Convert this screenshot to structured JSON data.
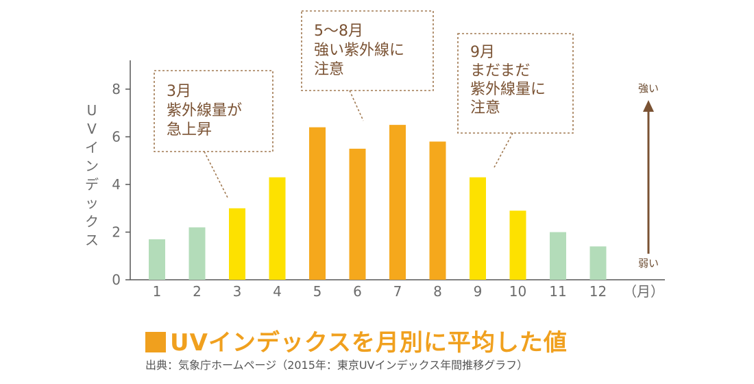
{
  "chart_data": {
    "type": "bar",
    "categories": [
      "1",
      "2",
      "3",
      "4",
      "5",
      "6",
      "7",
      "8",
      "9",
      "10",
      "11",
      "12"
    ],
    "x_unit_label": "（月）",
    "values": [
      1.7,
      2.2,
      3.0,
      4.3,
      6.4,
      5.5,
      6.5,
      5.8,
      4.3,
      2.9,
      2.0,
      1.4
    ],
    "bar_colors": [
      "#b3dcb9",
      "#b3dcb9",
      "#fde100",
      "#fde100",
      "#f5a81c",
      "#f5a81c",
      "#f5a81c",
      "#f5a81c",
      "#fde100",
      "#fde100",
      "#b3dcb9",
      "#b3dcb9"
    ],
    "ylabel": "UVインデックス",
    "yticks": [
      0,
      2,
      4,
      6,
      8
    ],
    "ylim": [
      0,
      8.9
    ],
    "grid": false,
    "title": "UVインデックスを月別に平均した値",
    "source": "出典：気象庁ホームページ（2015年：東京UVインデックス年間推移グラフ）",
    "scale": {
      "top_label": "強い",
      "bottom_label": "弱い",
      "arrow_color": "#7a5233"
    },
    "annotations": [
      {
        "target": "3",
        "lines": [
          "3月",
          "紫外線量が",
          "急上昇"
        ]
      },
      {
        "target": "6",
        "lines": [
          "5〜8月",
          "強い紫外線に",
          "注意"
        ]
      },
      {
        "target": "9",
        "lines": [
          "9月",
          "まだまだ",
          "紫外線量に",
          "注意"
        ]
      }
    ]
  },
  "colors": {
    "accent": "#f0a01e",
    "callout_text": "#7a5233",
    "callout_border": "#a07850"
  }
}
